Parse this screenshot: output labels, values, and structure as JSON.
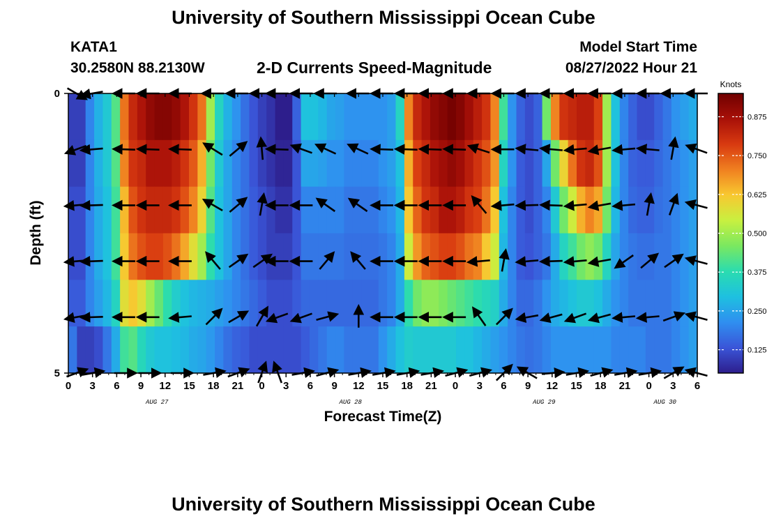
{
  "header": {
    "title": "University of Southern Mississippi Ocean Cube",
    "station": "KATA1",
    "coords": "30.2580N  88.2130W",
    "subtitle": "2-D Currents Speed-Magnitude",
    "model_start_label": "Model Start Time",
    "model_start_value": "08/27/2022 Hour 21",
    "footer_title": "University of Southern Mississippi Ocean Cube"
  },
  "colors": {
    "scale": [
      "#2d1e8c",
      "#3a55d8",
      "#2f8ff0",
      "#1ec0e0",
      "#2adcb0",
      "#7ae860",
      "#c8f040",
      "#f8c830",
      "#f08020",
      "#d83a10",
      "#a81008",
      "#700000"
    ]
  },
  "chart_data": {
    "type": "heatmap",
    "xlabel": "Forecast Time(Z)",
    "ylabel": "Depth (ft)",
    "y_ticks": [
      "0",
      "5"
    ],
    "ylim": [
      0,
      5
    ],
    "x_tick_labels": [
      "0",
      "3",
      "6",
      "9",
      "12",
      "15",
      "18",
      "21",
      "0",
      "3",
      "6",
      "9",
      "12",
      "15",
      "18",
      "21",
      "0",
      "3",
      "6",
      "9",
      "12",
      "15",
      "18",
      "21",
      "0",
      "3",
      "6"
    ],
    "x_range_hours": [
      0,
      78
    ],
    "date_labels": [
      {
        "text": "AUG 27",
        "hour": 11
      },
      {
        "text": "AUG 28",
        "hour": 35
      },
      {
        "text": "AUG 29",
        "hour": 59
      },
      {
        "text": "AUG 30",
        "hour": 74
      }
    ],
    "colorbar": {
      "title": "Knots",
      "range": [
        0.05,
        0.95
      ],
      "ticks": [
        "0.125",
        "0.250",
        "0.375",
        "0.500",
        "0.625",
        "0.750",
        "0.875"
      ],
      "tick_values": [
        0.125,
        0.25,
        0.375,
        0.5,
        0.625,
        0.75,
        0.875
      ]
    },
    "depth_rows": 6,
    "speed_knots": [
      [
        0.1,
        0.1,
        0.2,
        0.27,
        0.32,
        0.42,
        0.72,
        0.82,
        0.86,
        0.9,
        0.92,
        0.92,
        0.9,
        0.86,
        0.8,
        0.72,
        0.5,
        0.35,
        0.27,
        0.22,
        0.17,
        0.13,
        0.1,
        0.08,
        0.05,
        0.05,
        0.15,
        0.3,
        0.3,
        0.28,
        0.25,
        0.24,
        0.22,
        0.22,
        0.22,
        0.22,
        0.22,
        0.24,
        0.35,
        0.7,
        0.82,
        0.86,
        0.9,
        0.92,
        0.94,
        0.92,
        0.88,
        0.84,
        0.8,
        0.7,
        0.4,
        0.22,
        0.15,
        0.12,
        0.15,
        0.45,
        0.7,
        0.8,
        0.82,
        0.84,
        0.84,
        0.78,
        0.5,
        0.3,
        0.2,
        0.15,
        0.12,
        0.12,
        0.15,
        0.18,
        0.22,
        0.24,
        0.26
      ],
      [
        0.1,
        0.1,
        0.2,
        0.27,
        0.32,
        0.42,
        0.7,
        0.8,
        0.82,
        0.86,
        0.86,
        0.86,
        0.84,
        0.8,
        0.75,
        0.65,
        0.45,
        0.32,
        0.25,
        0.2,
        0.17,
        0.13,
        0.1,
        0.08,
        0.06,
        0.06,
        0.13,
        0.25,
        0.25,
        0.24,
        0.22,
        0.22,
        0.2,
        0.2,
        0.2,
        0.2,
        0.22,
        0.24,
        0.3,
        0.65,
        0.78,
        0.82,
        0.86,
        0.88,
        0.9,
        0.88,
        0.84,
        0.8,
        0.76,
        0.68,
        0.35,
        0.22,
        0.14,
        0.12,
        0.15,
        0.25,
        0.45,
        0.6,
        0.72,
        0.8,
        0.82,
        0.76,
        0.5,
        0.3,
        0.2,
        0.15,
        0.14,
        0.14,
        0.16,
        0.18,
        0.2,
        0.22,
        0.24
      ],
      [
        0.12,
        0.12,
        0.2,
        0.26,
        0.3,
        0.4,
        0.64,
        0.76,
        0.8,
        0.82,
        0.82,
        0.82,
        0.8,
        0.76,
        0.7,
        0.6,
        0.42,
        0.3,
        0.25,
        0.2,
        0.17,
        0.14,
        0.12,
        0.1,
        0.08,
        0.08,
        0.13,
        0.2,
        0.2,
        0.2,
        0.2,
        0.2,
        0.18,
        0.18,
        0.18,
        0.18,
        0.2,
        0.22,
        0.28,
        0.62,
        0.74,
        0.8,
        0.82,
        0.86,
        0.86,
        0.84,
        0.8,
        0.78,
        0.72,
        0.62,
        0.3,
        0.2,
        0.14,
        0.12,
        0.15,
        0.2,
        0.32,
        0.45,
        0.55,
        0.65,
        0.7,
        0.66,
        0.45,
        0.28,
        0.2,
        0.16,
        0.15,
        0.15,
        0.17,
        0.18,
        0.2,
        0.22,
        0.24
      ],
      [
        0.12,
        0.12,
        0.2,
        0.26,
        0.3,
        0.4,
        0.62,
        0.72,
        0.76,
        0.78,
        0.78,
        0.76,
        0.72,
        0.66,
        0.58,
        0.5,
        0.38,
        0.3,
        0.25,
        0.2,
        0.17,
        0.14,
        0.12,
        0.1,
        0.1,
        0.1,
        0.13,
        0.18,
        0.18,
        0.18,
        0.18,
        0.18,
        0.17,
        0.17,
        0.17,
        0.17,
        0.18,
        0.2,
        0.26,
        0.55,
        0.68,
        0.74,
        0.76,
        0.78,
        0.78,
        0.76,
        0.72,
        0.7,
        0.62,
        0.55,
        0.28,
        0.2,
        0.14,
        0.13,
        0.15,
        0.18,
        0.26,
        0.35,
        0.4,
        0.45,
        0.48,
        0.45,
        0.35,
        0.25,
        0.2,
        0.18,
        0.17,
        0.17,
        0.18,
        0.18,
        0.2,
        0.22,
        0.24
      ],
      [
        0.14,
        0.14,
        0.2,
        0.24,
        0.28,
        0.35,
        0.58,
        0.62,
        0.58,
        0.5,
        0.44,
        0.38,
        0.33,
        0.3,
        0.28,
        0.27,
        0.26,
        0.24,
        0.22,
        0.2,
        0.18,
        0.16,
        0.14,
        0.12,
        0.12,
        0.12,
        0.14,
        0.16,
        0.16,
        0.16,
        0.16,
        0.16,
        0.16,
        0.16,
        0.16,
        0.16,
        0.18,
        0.2,
        0.26,
        0.38,
        0.45,
        0.48,
        0.48,
        0.46,
        0.44,
        0.42,
        0.4,
        0.38,
        0.36,
        0.34,
        0.26,
        0.2,
        0.16,
        0.16,
        0.18,
        0.22,
        0.26,
        0.28,
        0.3,
        0.32,
        0.32,
        0.3,
        0.26,
        0.22,
        0.2,
        0.18,
        0.18,
        0.18,
        0.18,
        0.18,
        0.2,
        0.22,
        0.24
      ],
      [
        0.18,
        0.1,
        0.1,
        0.12,
        0.18,
        0.26,
        0.4,
        0.42,
        0.36,
        0.32,
        0.3,
        0.3,
        0.29,
        0.28,
        0.26,
        0.25,
        0.23,
        0.2,
        0.17,
        0.15,
        0.14,
        0.12,
        0.12,
        0.12,
        0.12,
        0.12,
        0.12,
        0.14,
        0.16,
        0.18,
        0.2,
        0.2,
        0.18,
        0.18,
        0.18,
        0.18,
        0.22,
        0.26,
        0.3,
        0.33,
        0.32,
        0.32,
        0.32,
        0.32,
        0.32,
        0.3,
        0.3,
        0.28,
        0.26,
        0.24,
        0.22,
        0.2,
        0.18,
        0.17,
        0.18,
        0.2,
        0.22,
        0.22,
        0.22,
        0.22,
        0.22,
        0.22,
        0.22,
        0.2,
        0.2,
        0.2,
        0.2,
        0.18,
        0.18,
        0.18,
        0.2,
        0.22,
        0.24
      ]
    ],
    "arrow_hours": [
      1,
      3,
      7,
      10,
      14,
      18,
      21,
      24,
      26,
      29,
      32,
      36,
      39,
      42,
      45,
      48,
      51,
      54,
      57,
      60,
      63,
      66,
      69,
      72,
      75,
      78
    ],
    "arrow_direction_deg": [
      [
        330,
        190,
        180,
        180,
        180,
        180,
        180,
        180,
        180,
        180,
        180,
        180,
        180,
        180,
        180,
        180,
        180,
        180,
        180,
        180,
        180,
        180,
        180,
        180,
        180,
        180
      ],
      [
        200,
        185,
        178,
        178,
        178,
        148,
        40,
        95,
        178,
        160,
        155,
        155,
        178,
        178,
        178,
        178,
        162,
        180,
        175,
        175,
        185,
        190,
        185,
        175,
        80,
        160
      ],
      [
        185,
        182,
        180,
        180,
        180,
        150,
        40,
        80,
        180,
        180,
        145,
        145,
        180,
        180,
        180,
        180,
        130,
        185,
        182,
        178,
        185,
        190,
        185,
        80,
        70,
        165
      ],
      [
        185,
        182,
        180,
        180,
        180,
        130,
        35,
        35,
        180,
        180,
        50,
        130,
        180,
        180,
        180,
        180,
        185,
        80,
        185,
        182,
        185,
        190,
        215,
        40,
        35,
        165
      ],
      [
        190,
        182,
        180,
        180,
        185,
        45,
        30,
        60,
        200,
        200,
        15,
        90,
        180,
        180,
        180,
        180,
        125,
        45,
        190,
        195,
        200,
        195,
        185,
        185,
        20,
        165
      ],
      [
        20,
        10,
        0,
        0,
        0,
        10,
        20,
        70,
        110,
        10,
        15,
        10,
        10,
        10,
        10,
        15,
        15,
        45,
        150,
        5,
        10,
        15,
        10,
        10,
        30,
        165
      ]
    ]
  }
}
